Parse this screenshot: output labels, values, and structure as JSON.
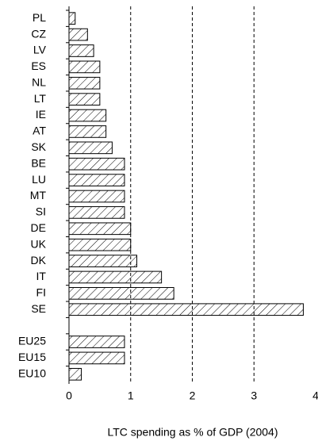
{
  "chart_data": {
    "type": "hbar",
    "xlabel": "LTC spending as % of GDP (2004)",
    "categories": [
      "PL",
      "CZ",
      "LV",
      "ES",
      "NL",
      "LT",
      "IE",
      "AT",
      "SK",
      "BE",
      "LU",
      "MT",
      "SI",
      "DE",
      "UK",
      "DK",
      "IT",
      "FI",
      "SE",
      null,
      "EU25",
      "EU15",
      "EU10"
    ],
    "values": [
      0.1,
      0.3,
      0.4,
      0.5,
      0.5,
      0.5,
      0.6,
      0.6,
      0.7,
      0.9,
      0.9,
      0.9,
      0.9,
      1.0,
      1.0,
      1.1,
      1.5,
      1.7,
      3.8,
      null,
      0.9,
      0.9,
      0.2
    ],
    "xlim": [
      0,
      4
    ],
    "xticks": [
      0,
      1,
      2,
      3,
      4
    ],
    "grid": true,
    "grid_style": "dashed",
    "hatch": true,
    "color": "#000000"
  }
}
